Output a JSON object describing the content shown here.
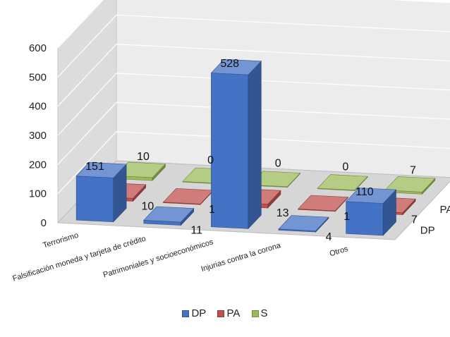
{
  "chart_data": {
    "type": "bar",
    "title": "",
    "xlabel": "",
    "ylabel": "",
    "ylim": [
      0,
      600
    ],
    "yticks": [
      0,
      100,
      200,
      300,
      400,
      500,
      600
    ],
    "categories": [
      "Terrorismo",
      "Falsificación moneda y tarjeta de crédito",
      "Patrimoniales y socioeconómicos",
      "Injurias contra la corona",
      "Otros"
    ],
    "series": [
      {
        "name": "DP",
        "values": [
          151,
          11,
          528,
          4,
          110
        ],
        "color": "#4472C4"
      },
      {
        "name": "PA",
        "values": [
          10,
          1,
          13,
          1,
          7
        ],
        "color": "#C0504D"
      },
      {
        "name": "S",
        "values": [
          10,
          0,
          0,
          0,
          7
        ],
        "color": "#9BBB59"
      }
    ],
    "depth_labels": [
      "DP",
      "PA",
      "S"
    ],
    "grid": true,
    "legend_position": "bottom",
    "style": "3d-bar"
  }
}
